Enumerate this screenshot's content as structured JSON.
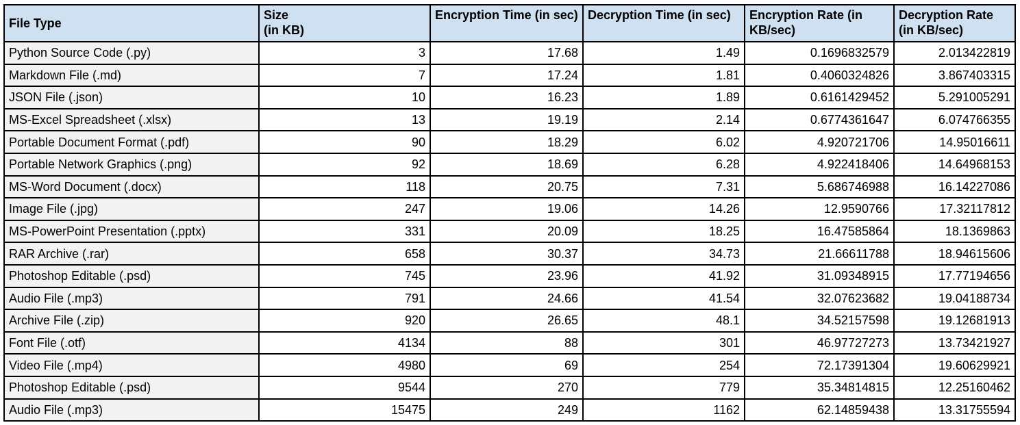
{
  "table": {
    "headers": [
      "File Type",
      "Size\n(in KB)",
      "Encryption Time (in sec)",
      "Decryption Time (in sec)",
      "Encryption Rate (in KB/sec)",
      "Decryption Rate (in KB/sec)"
    ],
    "rows": [
      [
        "Python Source Code (.py)",
        "3",
        "17.68",
        "1.49",
        "0.1696832579",
        "2.013422819"
      ],
      [
        "Markdown File (.md)",
        "7",
        "17.24",
        "1.81",
        "0.4060324826",
        "3.867403315"
      ],
      [
        "JSON File (.json)",
        "10",
        "16.23",
        "1.89",
        "0.6161429452",
        "5.291005291"
      ],
      [
        "MS-Excel Spreadsheet (.xlsx)",
        "13",
        "19.19",
        "2.14",
        "0.6774361647",
        "6.074766355"
      ],
      [
        "Portable Document Format (.pdf)",
        "90",
        "18.29",
        "6.02",
        "4.920721706",
        "14.95016611"
      ],
      [
        "Portable Network Graphics (.png)",
        "92",
        "18.69",
        "6.28",
        "4.922418406",
        "14.64968153"
      ],
      [
        "MS-Word Document (.docx)",
        "118",
        "20.75",
        "7.31",
        "5.686746988",
        "16.14227086"
      ],
      [
        "Image File (.jpg)",
        "247",
        "19.06",
        "14.26",
        "12.9590766",
        "17.32117812"
      ],
      [
        "MS-PowerPoint Presentation (.pptx)",
        "331",
        "20.09",
        "18.25",
        "16.47585864",
        "18.1369863"
      ],
      [
        "RAR Archive (.rar)",
        "658",
        "30.37",
        "34.73",
        "21.66611788",
        "18.94615606"
      ],
      [
        "Photoshop Editable (.psd)",
        "745",
        "23.96",
        "41.92",
        "31.09348915",
        "17.77194656"
      ],
      [
        "Audio File (.mp3)",
        "791",
        "24.66",
        "41.54",
        "32.07623682",
        "19.04188734"
      ],
      [
        "Archive File (.zip)",
        "920",
        "26.65",
        "48.1",
        "34.52157598",
        "19.12681913"
      ],
      [
        "Font File (.otf)",
        "4134",
        "88",
        "301",
        "46.97727273",
        "13.73421927"
      ],
      [
        "Video File (.mp4)",
        "4980",
        "69",
        "254",
        "72.17391304",
        "19.60629921"
      ],
      [
        "Photoshop Editable (.psd)",
        "9544",
        "270",
        "779",
        "35.34814815",
        "12.25160462"
      ],
      [
        "Audio File (.mp3)",
        "15475",
        "249",
        "1162",
        "62.14859438",
        "13.31755594"
      ]
    ]
  },
  "colors": {
    "header_bg": "#cfe0f1",
    "first_col_bg": "#f2f2f2",
    "border": "#000000"
  }
}
